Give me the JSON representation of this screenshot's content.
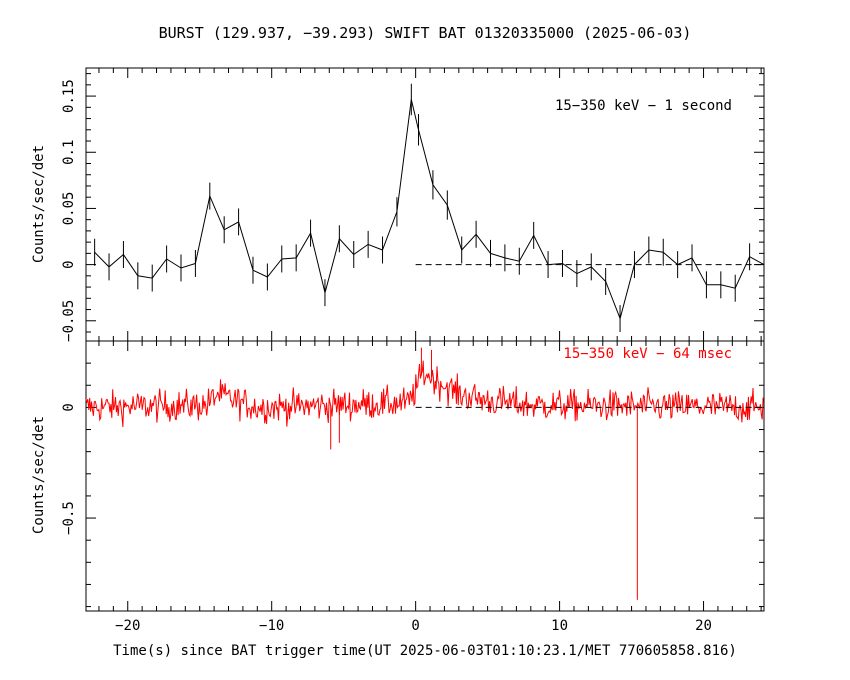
{
  "figure": {
    "title": "BURST (129.937, −39.293) SWIFT BAT 01320335000 (2025-06-03)",
    "xlabel": "Time(s) since BAT trigger time(UT 2025-06-03T01:10:23.1/MET 770605858.816)"
  },
  "colors": {
    "top_series": "#000000",
    "bottom_series": "#ff0000",
    "axes": "#000000"
  },
  "chart_data": [
    {
      "type": "line",
      "panel": "top",
      "title": "",
      "annotation": "15−350 keV − 1 second",
      "ylabel": "Counts/sec/det",
      "xlim": [
        -22.9,
        24.2
      ],
      "ylim": [
        -0.068,
        0.175
      ],
      "x_ticks": [
        -20,
        -10,
        0,
        10,
        20
      ],
      "y_ticks": [
        -0.05,
        0,
        0.05,
        0.1,
        0.15
      ],
      "y_tick_labels": [
        "−0.05",
        "0",
        "0.05",
        "0.1",
        "0.15"
      ],
      "baseline": {
        "y": 0,
        "x_start": 0,
        "x_end": 24.2
      },
      "series": [
        {
          "x": [
            -22.3,
            -21.3,
            -20.3,
            -19.3,
            -18.3,
            -17.3,
            -16.3,
            -15.3,
            -14.3,
            -13.3,
            -12.3,
            -11.3,
            -10.3,
            -9.3,
            -8.3,
            -7.3,
            -6.3,
            -5.3,
            -4.3,
            -3.3,
            -2.3,
            -1.3,
            -0.3,
            0.2,
            1.2,
            2.2,
            3.2,
            4.2,
            5.2,
            6.2,
            7.2,
            8.2,
            9.2,
            10.2,
            11.2,
            12.2,
            13.2,
            14.2,
            15.2,
            16.2,
            17.2,
            18.2,
            19.2,
            20.2,
            21.2,
            22.2,
            23.2,
            24.2
          ],
          "y": [
            0.011,
            -0.002,
            0.009,
            -0.01,
            -0.012,
            0.005,
            -0.003,
            0.001,
            0.061,
            0.031,
            0.038,
            -0.005,
            -0.011,
            0.005,
            0.006,
            0.028,
            -0.025,
            0.023,
            0.009,
            0.018,
            0.013,
            0.047,
            0.147,
            0.12,
            0.071,
            0.053,
            0.013,
            0.027,
            0.01,
            0.006,
            0.003,
            0.026,
            0.0,
            0.001,
            -0.008,
            -0.002,
            -0.015,
            -0.048,
            0.0,
            0.013,
            0.011,
            0.0,
            0.006,
            -0.018,
            -0.018,
            -0.021,
            0.007,
            0.0
          ],
          "err": [
            0.012,
            0.012,
            0.012,
            0.012,
            0.012,
            0.012,
            0.012,
            0.012,
            0.012,
            0.012,
            0.012,
            0.012,
            0.012,
            0.012,
            0.012,
            0.012,
            0.012,
            0.012,
            0.012,
            0.012,
            0.012,
            0.013,
            0.014,
            0.014,
            0.013,
            0.013,
            0.012,
            0.012,
            0.012,
            0.012,
            0.012,
            0.012,
            0.012,
            0.012,
            0.012,
            0.012,
            0.012,
            0.012,
            0.012,
            0.012,
            0.012,
            0.012,
            0.012,
            0.012,
            0.012,
            0.012,
            0.012,
            0.012
          ]
        }
      ]
    },
    {
      "type": "line",
      "panel": "bottom",
      "title": "",
      "annotation": "15−350 keV − 64 msec",
      "ylabel": "Counts/sec/det",
      "xlabel": "Time(s) since BAT trigger time(UT 2025-06-03T01:10:23.1/MET 770605858.816)",
      "xlim": [
        -22.9,
        24.2
      ],
      "ylim": [
        -0.92,
        0.3
      ],
      "x_ticks": [
        -20,
        -10,
        0,
        10,
        20
      ],
      "x_tick_labels": [
        "−20",
        "−10",
        "0",
        "10",
        "20"
      ],
      "y_ticks": [
        -0.5,
        0
      ],
      "y_tick_labels": [
        "−0.5",
        "0"
      ],
      "baseline": {
        "y": 0,
        "x_start": 0,
        "x_end": 24.2
      },
      "series": [
        {
          "bin_width": 0.064,
          "x_start": -22.9,
          "x_end": 24.2,
          "noise_amplitude": 0.05,
          "profile": [
            {
              "x": -22.9,
              "y": 0.0
            },
            {
              "x": -14.5,
              "y": 0.01
            },
            {
              "x": -13.8,
              "y": 0.06
            },
            {
              "x": -12.5,
              "y": 0.03
            },
            {
              "x": -11.0,
              "y": 0.0
            },
            {
              "x": -0.5,
              "y": 0.02
            },
            {
              "x": 0.0,
              "y": 0.08
            },
            {
              "x": 0.5,
              "y": 0.16
            },
            {
              "x": 1.5,
              "y": 0.12
            },
            {
              "x": 3.0,
              "y": 0.06
            },
            {
              "x": 5.0,
              "y": 0.03
            },
            {
              "x": 8.0,
              "y": 0.01
            },
            {
              "x": 24.2,
              "y": 0.0
            }
          ],
          "outliers": [
            {
              "x": -5.9,
              "y": -0.19
            },
            {
              "x": -5.3,
              "y": -0.16
            },
            {
              "x": 0.4,
              "y": 0.27
            },
            {
              "x": 1.1,
              "y": 0.26
            },
            {
              "x": 15.4,
              "y": -0.87
            }
          ]
        }
      ]
    }
  ]
}
